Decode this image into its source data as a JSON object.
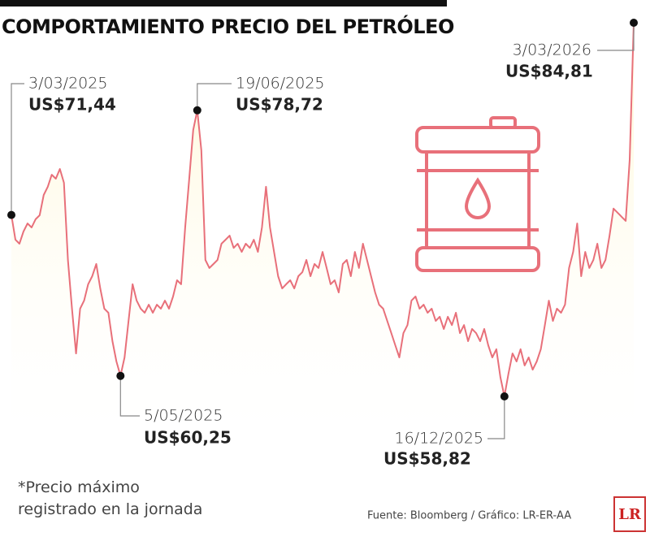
{
  "chart_data": {
    "type": "line",
    "title": "COMPORTAMIENTO PRECIO DEL PETRÓLEO",
    "color": "#e8707a",
    "values": [
      71.44,
      69.72,
      69.44,
      70.29,
      70.85,
      70.57,
      71.14,
      71.42,
      72.83,
      73.4,
      74.24,
      73.96,
      74.64,
      73.68,
      68.31,
      64.92,
      61.81,
      64.92,
      65.48,
      66.62,
      67.18,
      68.03,
      66.33,
      64.92,
      64.64,
      62.66,
      61.25,
      60.25,
      61.53,
      64.07,
      66.62,
      65.48,
      64.92,
      64.64,
      65.2,
      64.64,
      65.2,
      64.92,
      65.48,
      64.92,
      65.77,
      66.9,
      66.62,
      70.57,
      73.96,
      77.35,
      78.72,
      75.94,
      68.31,
      67.75,
      68.03,
      68.31,
      69.44,
      69.72,
      70.0,
      69.15,
      69.44,
      68.87,
      69.44,
      69.15,
      69.72,
      68.87,
      70.57,
      73.4,
      70.57,
      68.87,
      67.18,
      66.33,
      66.62,
      66.9,
      66.33,
      67.18,
      67.46,
      68.31,
      67.18,
      68.03,
      67.75,
      68.87,
      67.75,
      66.62,
      66.9,
      66.05,
      68.03,
      68.31,
      67.18,
      68.87,
      67.75,
      69.44,
      68.31,
      67.18,
      66.05,
      65.2,
      64.92,
      64.07,
      63.22,
      62.38,
      61.53,
      63.22,
      63.78,
      65.48,
      65.77,
      64.92,
      65.2,
      64.64,
      64.92,
      64.07,
      64.36,
      63.51,
      64.36,
      63.78,
      64.64,
      63.22,
      63.78,
      62.66,
      63.51,
      63.22,
      62.66,
      63.51,
      62.38,
      61.53,
      62.1,
      60.15,
      58.82,
      60.4,
      61.81,
      61.25,
      62.1,
      60.97,
      61.53,
      60.68,
      61.25,
      62.1,
      63.78,
      65.48,
      64.07,
      64.92,
      64.64,
      65.2,
      67.75,
      68.87,
      70.85,
      67.18,
      68.87,
      67.75,
      68.31,
      69.44,
      67.75,
      68.31,
      70.0,
      71.88,
      71.6,
      71.31,
      71.03,
      75.29,
      84.81
    ],
    "annotations": [
      {
        "date": "3/03/2025",
        "value": 71.44,
        "label": "US$71,44"
      },
      {
        "date": "5/05/2025",
        "value": 60.25,
        "label": "US$60,25"
      },
      {
        "date": "19/06/2025",
        "value": 78.72,
        "label": "US$78,72"
      },
      {
        "date": "16/12/2025",
        "value": 58.82,
        "label": "US$58,82"
      },
      {
        "date": "3/03/2026",
        "value": 84.81,
        "label": "US$84,81"
      }
    ],
    "note": "*Precio máximo registrado en la jornada",
    "source": "Fuente: Bloomberg / Gráfico: LR-ER-AA",
    "logo": "LR"
  }
}
